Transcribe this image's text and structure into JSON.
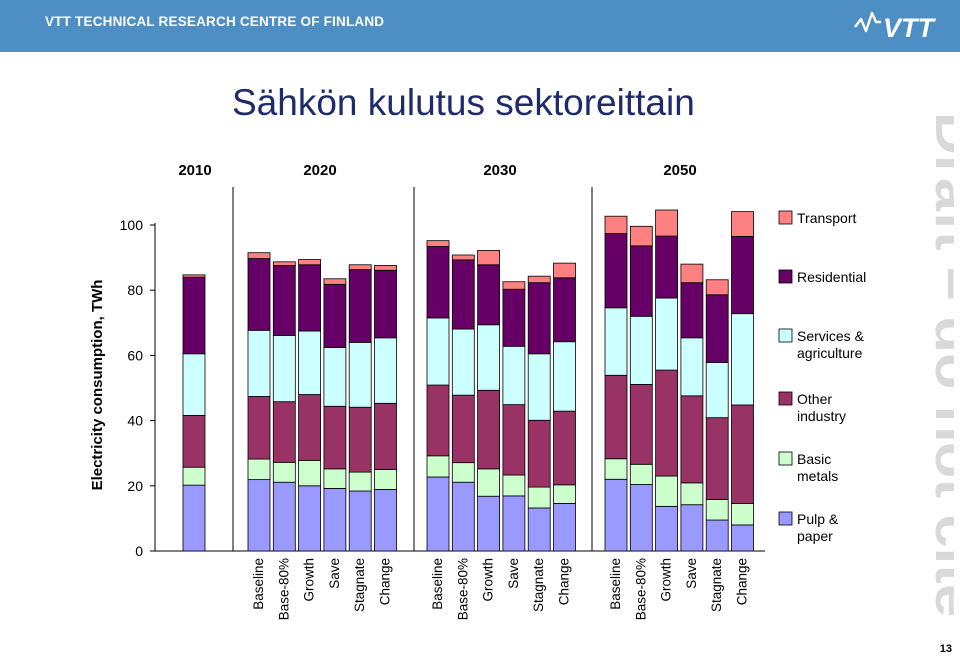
{
  "header": {
    "organization": "VTT TECHNICAL RESEARCH CENTRE OF FINLAND",
    "logo_text": "VTT"
  },
  "slide": {
    "title": "Sähkön kulutus sektoreittain",
    "watermark": "Draft – do not cite",
    "page_number": "13"
  },
  "colors": {
    "header": "#4d8fc4",
    "Pulp & paper": "#9999ff",
    "Basic metals": "#ccffcc",
    "Other industry": "#993366",
    "Services & agriculture": "#ccffff",
    "Residential": "#660066",
    "Transport": "#ff8080"
  },
  "chart_data": {
    "type": "bar",
    "stacked": true,
    "ylabel": "Electricity consumption, TWh",
    "ylim": [
      0,
      100
    ],
    "yticks": [
      0,
      20,
      40,
      60,
      80,
      100
    ],
    "grid": false,
    "legend_position": "right",
    "year_groups": [
      {
        "year": "2010",
        "categories": [
          ""
        ]
      },
      {
        "year": "2020",
        "categories": [
          "Baseline",
          "Base-80%",
          "Growth",
          "Save",
          "Stagnate",
          "Change"
        ]
      },
      {
        "year": "2030",
        "categories": [
          "Baseline",
          "Base-80%",
          "Growth",
          "Save",
          "Stagnate",
          "Change"
        ]
      },
      {
        "year": "2050",
        "categories": [
          "Baseline",
          "Base-80%",
          "Growth",
          "Save",
          "Stagnate",
          "Change"
        ]
      }
    ],
    "series": [
      {
        "name": "Pulp & paper",
        "values": [
          20.2,
          21.9,
          21.1,
          20.0,
          19.2,
          18.4,
          18.9,
          22.7,
          21.1,
          16.8,
          16.9,
          13.2,
          14.6,
          22.0,
          20.4,
          13.7,
          14.2,
          9.5,
          8.0
        ]
      },
      {
        "name": "Basic metals",
        "values": [
          5.5,
          6.3,
          6.1,
          7.8,
          6.0,
          5.8,
          6.1,
          6.5,
          6.0,
          8.4,
          6.4,
          6.4,
          5.7,
          6.3,
          6.2,
          9.3,
          6.7,
          6.3,
          6.6
        ]
      },
      {
        "name": "Other industry",
        "values": [
          15.9,
          19.2,
          18.6,
          20.2,
          19.2,
          19.9,
          20.3,
          21.7,
          20.7,
          24.1,
          21.6,
          20.5,
          22.6,
          25.6,
          24.5,
          32.5,
          26.7,
          25.1,
          30.2
        ]
      },
      {
        "name": "Services & agriculture",
        "values": [
          18.9,
          20.3,
          20.3,
          19.5,
          18.0,
          19.9,
          20.1,
          20.6,
          20.3,
          20.1,
          17.9,
          20.4,
          21.3,
          20.7,
          20.9,
          22.1,
          17.8,
          16.9,
          28.0
        ]
      },
      {
        "name": "Residential",
        "values": [
          23.5,
          22.0,
          21.5,
          20.3,
          19.4,
          22.3,
          20.7,
          21.9,
          21.2,
          18.4,
          17.5,
          21.8,
          19.6,
          22.8,
          21.6,
          19.0,
          16.9,
          20.8,
          23.7
        ]
      },
      {
        "name": "Transport",
        "values": [
          0.7,
          1.8,
          1.1,
          1.6,
          1.7,
          1.5,
          1.5,
          1.8,
          1.5,
          4.4,
          2.3,
          2.0,
          4.5,
          5.3,
          6.0,
          8.0,
          5.7,
          4.6,
          7.6
        ]
      }
    ]
  }
}
